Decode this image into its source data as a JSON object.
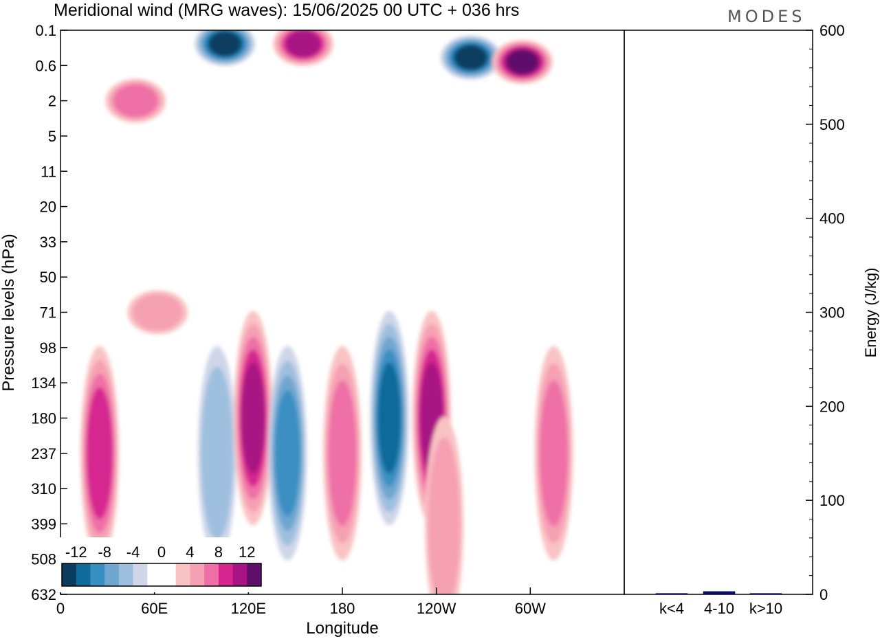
{
  "chart_data": [
    {
      "type": "heatmap",
      "title": "Meridional wind (MRG waves):  15/06/2025  00 UTC  + 036 hrs",
      "xlabel": "Longitude",
      "ylabel": "Pressure levels (hPa)",
      "x_ticks": [
        "0",
        "60E",
        "120E",
        "180",
        "120W",
        "60W"
      ],
      "y_ticks": [
        "0.1",
        "0.6",
        "2",
        "5",
        "11",
        "20",
        "33",
        "50",
        "71",
        "98",
        "134",
        "180",
        "237",
        "310",
        "399",
        "508",
        "632"
      ],
      "colorbar": {
        "labels": [
          "-12",
          "-8",
          "-4",
          "0",
          "4",
          "8",
          "12"
        ],
        "levels": [
          -14,
          -12,
          -10,
          -8,
          -6,
          -4,
          -2,
          2,
          4,
          6,
          8,
          10,
          12,
          14
        ],
        "colors": [
          "#0b3d5e",
          "#0f6b9b",
          "#3a8fc2",
          "#6ea6cf",
          "#9fbfdf",
          "#cfd6e8",
          "#ffffff",
          "#ffffff",
          "#f9c3c3",
          "#f6a0b4",
          "#ef70a6",
          "#d6258f",
          "#a81483",
          "#5e0f6b"
        ]
      },
      "features": [
        {
          "x": 25,
          "y": 237,
          "value": 11
        },
        {
          "x": 48,
          "y": 2,
          "value": 9
        },
        {
          "x": 62,
          "y": 71,
          "value": 6
        },
        {
          "x": 100,
          "y": 237,
          "value": -6
        },
        {
          "x": 123,
          "y": 180,
          "value": 12
        },
        {
          "x": 145,
          "y": 237,
          "value": -10
        },
        {
          "x": 180,
          "y": 237,
          "value": 8
        },
        {
          "x": 155,
          "y": 0.2,
          "value": 12
        },
        {
          "x": 105,
          "y": 0.2,
          "value": -14
        },
        {
          "x": 210,
          "y": 180,
          "value": -12
        },
        {
          "x": 237,
          "y": 180,
          "value": 12
        },
        {
          "x": 245,
          "y": 399,
          "value": 6
        },
        {
          "x": 262,
          "y": 0.4,
          "value": -14
        },
        {
          "x": 295,
          "y": 0.5,
          "value": 14
        },
        {
          "x": 315,
          "y": 237,
          "value": 8
        }
      ]
    },
    {
      "type": "bar",
      "ylabel": "Energy (J/kg)",
      "categories": [
        "k<4",
        "4-10",
        "k>10"
      ],
      "values": [
        1,
        3,
        1
      ],
      "ylim": [
        0,
        600
      ],
      "y_ticks": [
        "0",
        "100",
        "200",
        "300",
        "400",
        "500",
        "600"
      ],
      "bar_color": "#0a0a7a"
    }
  ],
  "brand": "MODES"
}
